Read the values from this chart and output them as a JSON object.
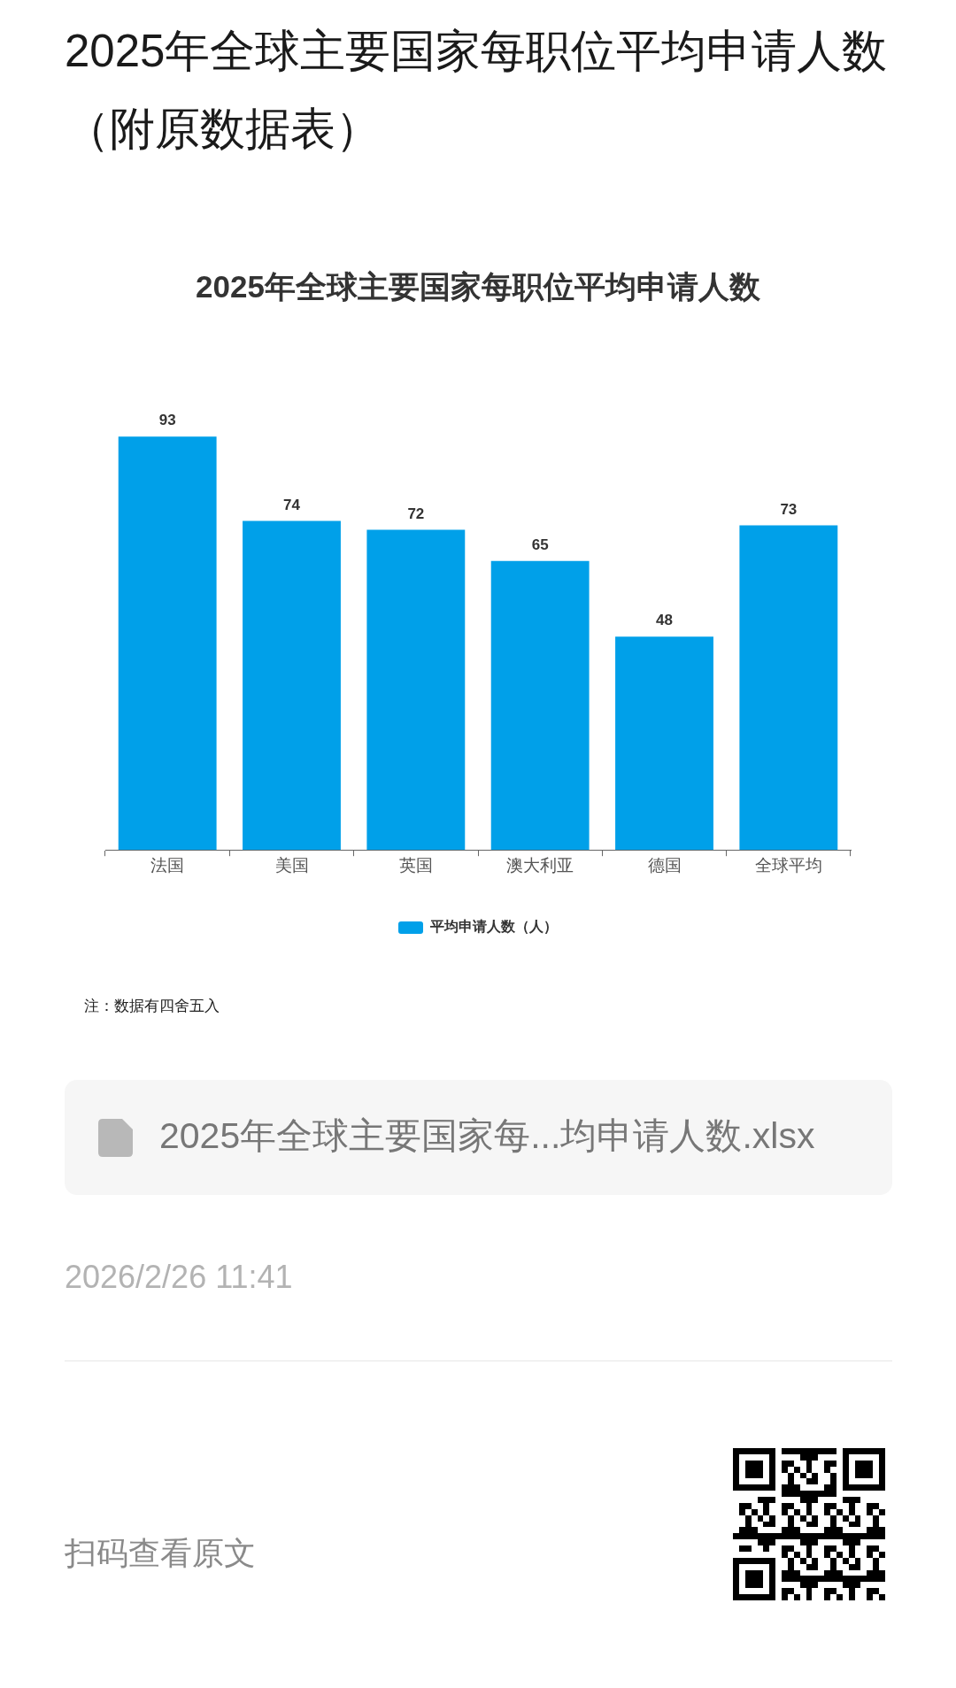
{
  "chart_data": {
    "type": "bar",
    "title": "2025年全球主要国家每职位平均申请人数（附原数据表）",
    "subtitle": "2025年全球主要国家每职位平均申请人数",
    "categories": [
      "法国",
      "美国",
      "英国",
      "澳大利亚",
      "德国",
      "全球平均"
    ],
    "series": [
      {
        "name": "平均申请人数（人）",
        "color": "#00a0e9",
        "values": [
          93,
          74,
          72,
          65,
          48,
          73
        ]
      }
    ],
    "data_labels": true,
    "legend": "bottom",
    "grid": false,
    "tick_labels": "x",
    "annotations": [
      "注：数据有四舍五入",
      "2025年全球主要国家每...均申请人数.xlsx",
      "2026/2/26 11:41",
      "扫码查看原文"
    ]
  }
}
